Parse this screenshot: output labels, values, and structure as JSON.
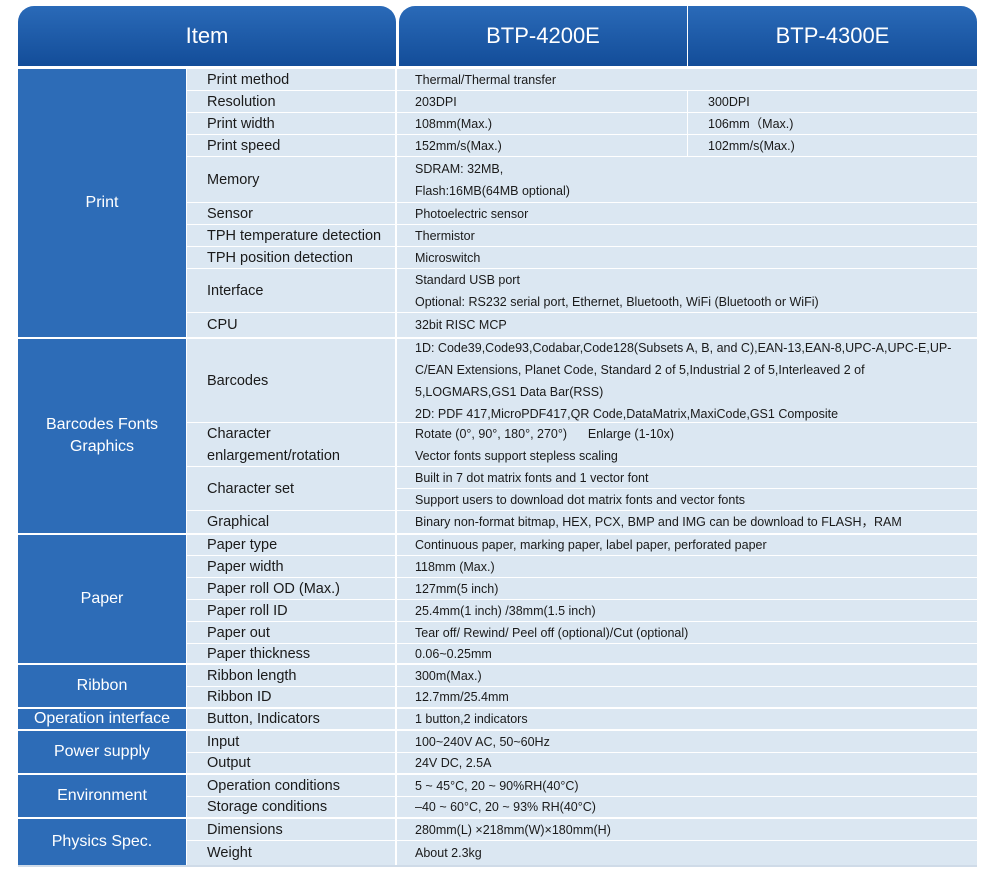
{
  "header": {
    "item": "Item",
    "model1": "BTP-4200E",
    "model2": "BTP-4300E"
  },
  "categories": {
    "print": "Print",
    "barcodes": "Barcodes Fonts Graphics",
    "paper": "Paper",
    "ribbon": "Ribbon",
    "operation": "Operation interface",
    "power": "Power supply",
    "environment": "Environment",
    "physics": "Physics Spec."
  },
  "rows": {
    "print_method": {
      "label": "Print method",
      "value": "Thermal/Thermal transfer"
    },
    "resolution": {
      "label": "Resolution",
      "v1": "203DPI",
      "v2": "300DPI"
    },
    "print_width": {
      "label": "Print width",
      "v1": "108mm(Max.)",
      "v2": "106mm（Max.)"
    },
    "print_speed": {
      "label": "Print speed",
      "v1": "152mm/s(Max.)",
      "v2": "102mm/s(Max.)"
    },
    "memory": {
      "label": "Memory",
      "line1": "SDRAM: 32MB,",
      "line2": "Flash:16MB(64MB optional)"
    },
    "sensor": {
      "label": "Sensor",
      "value": "Photoelectric sensor"
    },
    "tph_temp": {
      "label": "TPH temperature detection",
      "value": "Thermistor"
    },
    "tph_pos": {
      "label": "TPH position detection",
      "value": "Microswitch"
    },
    "interface": {
      "label": "Interface",
      "line1": "Standard USB port",
      "line2": "Optional: RS232 serial port, Ethernet, Bluetooth, WiFi (Bluetooth or WiFi)"
    },
    "cpu": {
      "label": "CPU",
      "value": "32bit RISC MCP"
    },
    "barcodes": {
      "label": "Barcodes",
      "line1": "1D: Code39,Code93,Codabar,Code128(Subsets A, B, and C),EAN-13,EAN-8,UPC-A,UPC-E,UP-",
      "line2": "C/EAN Extensions, Planet Code, Standard 2 of 5,Industrial 2 of 5,Interleaved 2 of",
      "line3": "5,LOGMARS,GS1 Data Bar(RSS)",
      "line4": "2D: PDF 417,MicroPDF417,QR Code,DataMatrix,MaxiCode,GS1 Composite"
    },
    "char_enlarge": {
      "label1": "Character",
      "label2": "enlargement/rotation",
      "line1": "Rotate (0°, 90°, 180°, 270°)      Enlarge (1-10x)",
      "line2": "Vector fonts support stepless scaling"
    },
    "char_set": {
      "label": "Character set",
      "line1": "Built in 7 dot matrix fonts and 1 vector font",
      "line2": "Support users to download dot matrix fonts and vector fonts"
    },
    "graphical": {
      "label": "Graphical",
      "value": "Binary non-format bitmap, HEX, PCX, BMP and IMG can be download to FLASH，RAM"
    },
    "paper_type": {
      "label": "Paper type",
      "value": "Continuous paper, marking paper, label paper, perforated paper"
    },
    "paper_width": {
      "label": "Paper width",
      "value": "118mm (Max.)"
    },
    "paper_od": {
      "label": "Paper roll OD (Max.)",
      "value": "127mm(5 inch)"
    },
    "paper_id": {
      "label": "Paper roll ID",
      "value": "25.4mm(1 inch) /38mm(1.5 inch)"
    },
    "paper_out": {
      "label": "Paper out",
      "value": "Tear off/ Rewind/ Peel off (optional)/Cut (optional)"
    },
    "paper_thick": {
      "label": "Paper thickness",
      "value": "0.06~0.25mm"
    },
    "ribbon_len": {
      "label": "Ribbon length",
      "value": "300m(Max.)"
    },
    "ribbon_id": {
      "label": "Ribbon ID",
      "value": "12.7mm/25.4mm"
    },
    "buttons": {
      "label": "Button, Indicators",
      "value": "1 button,2 indicators"
    },
    "input": {
      "label": "Input",
      "value": "100~240V AC, 50~60Hz"
    },
    "output": {
      "label": "Output",
      "value": "24V DC, 2.5A"
    },
    "op_cond": {
      "label": "Operation conditions",
      "value": "5 ~ 45°C, 20 ~ 90%RH(40°C)"
    },
    "st_cond": {
      "label": "Storage conditions",
      "value": "–40 ~ 60°C, 20 ~ 93% RH(40°C)"
    },
    "dimensions": {
      "label": "Dimensions",
      "value": "280mm(L) ×218mm(W)×180mm(H)"
    },
    "weight": {
      "label": "Weight",
      "value": "About 2.3kg"
    }
  }
}
